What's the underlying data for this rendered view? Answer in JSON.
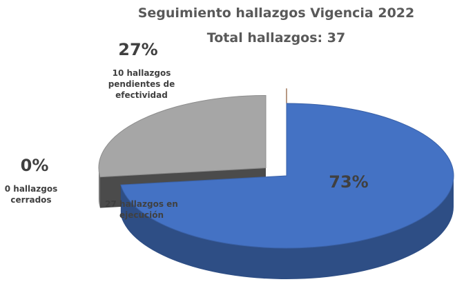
{
  "chart_data": {
    "type": "pie3d",
    "title": "Seguimiento hallazgos Vigencia 2022",
    "subtitle": "Total hallazgos: 37",
    "categories": [
      "27 hallazgos en ejecución",
      "10 hallazgos pendientes de efectividad",
      "0 hallazgos cerrados"
    ],
    "values": [
      73,
      27,
      0
    ],
    "value_labels": [
      "73%",
      "27%",
      "0%"
    ],
    "colors": [
      "#4472c4",
      "#a6a6a6",
      "#843c0c"
    ]
  }
}
